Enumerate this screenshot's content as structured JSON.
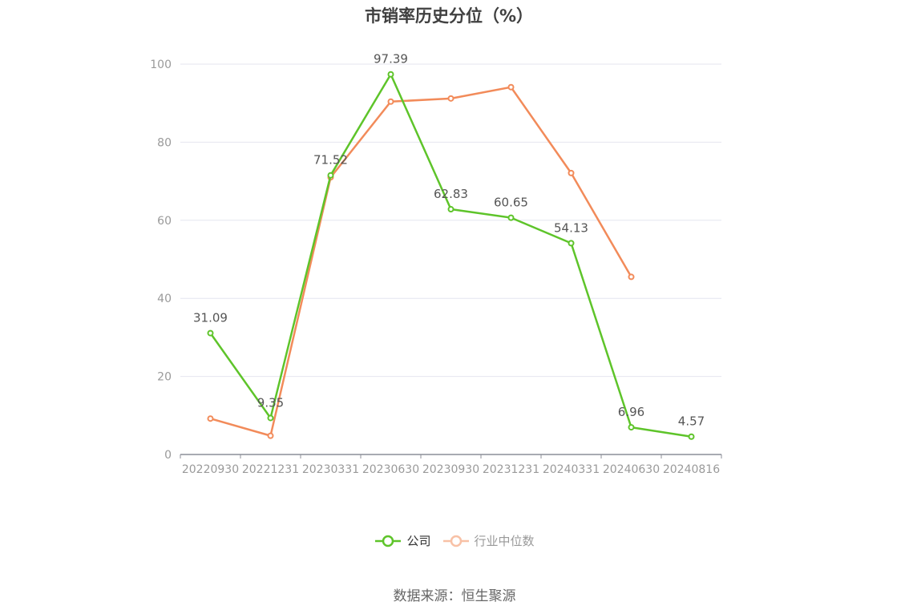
{
  "title": "市销率历史分位（%）",
  "source": "数据来源：恒生聚源",
  "colors": {
    "company": "#5ec42a",
    "industry": "#f28b5a",
    "grid": "#e4e6ef",
    "axis": "#8c8f98"
  },
  "chart_data": {
    "type": "line",
    "title": "市销率历史分位（%）",
    "categories": [
      "20220930",
      "20221231",
      "20230331",
      "20230630",
      "20230930",
      "20231231",
      "20240331",
      "20240630",
      "20240816"
    ],
    "ylim": [
      0,
      100
    ],
    "yticks": [
      0,
      20,
      40,
      60,
      80,
      100
    ],
    "grid": true,
    "legend_position": "bottom",
    "series": [
      {
        "name": "公司",
        "values": [
          31.09,
          9.35,
          71.52,
          97.39,
          62.83,
          60.65,
          54.13,
          6.96,
          4.57
        ],
        "labels": [
          "31.09",
          "9.35",
          "71.52",
          "97.39",
          "62.83",
          "60.65",
          "54.13",
          "6.96",
          "4.57"
        ]
      },
      {
        "name": "行业中位数",
        "values": [
          9.2,
          4.8,
          71.0,
          90.4,
          91.2,
          94.1,
          72.1,
          45.5,
          null
        ]
      }
    ]
  }
}
